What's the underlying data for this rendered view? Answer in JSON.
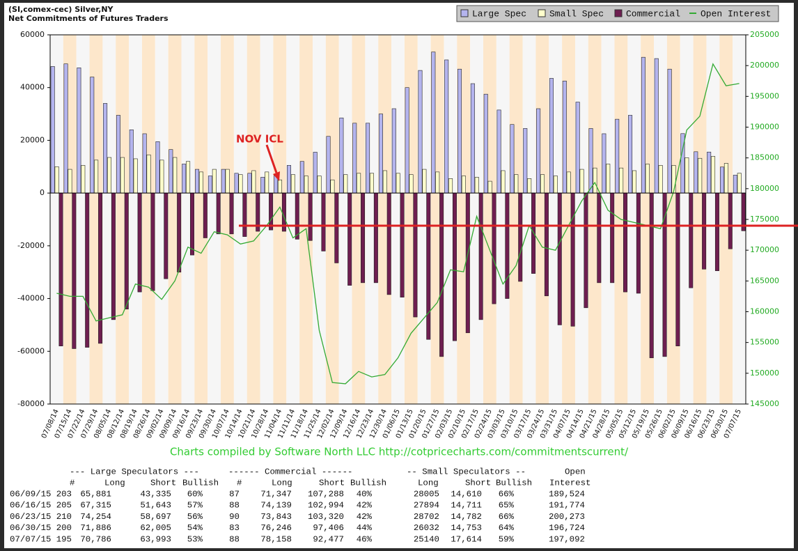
{
  "chart_data": {
    "type": "bar",
    "title": "(SI,comex-cec) Silver,NY",
    "subtitle": "Net Commitments of Futures Traders",
    "categories": [
      "07/08/14",
      "07/15/14",
      "07/22/14",
      "07/29/14",
      "08/05/14",
      "08/12/14",
      "08/19/14",
      "08/26/14",
      "09/02/14",
      "09/09/14",
      "09/16/14",
      "09/23/14",
      "09/30/14",
      "10/07/14",
      "10/14/14",
      "10/21/14",
      "10/28/14",
      "11/04/14",
      "11/11/14",
      "11/18/14",
      "11/25/14",
      "12/02/14",
      "12/09/14",
      "12/16/14",
      "12/23/14",
      "12/30/14",
      "01/06/15",
      "01/13/15",
      "01/20/15",
      "01/27/15",
      "02/03/15",
      "02/10/15",
      "02/17/15",
      "02/24/15",
      "03/03/15",
      "03/10/15",
      "03/17/15",
      "03/24/15",
      "03/31/15",
      "04/07/15",
      "04/14/15",
      "04/21/15",
      "04/28/15",
      "05/05/15",
      "05/12/15",
      "05/19/15",
      "05/26/15",
      "06/02/15",
      "06/09/15",
      "06/16/15",
      "06/23/15",
      "06/30/15",
      "07/07/15"
    ],
    "series": [
      {
        "name": "Large Spec",
        "color": "#b4b4ee",
        "values": [
          48000,
          49000,
          47500,
          44000,
          34000,
          29500,
          24000,
          22500,
          19500,
          16500,
          11000,
          9000,
          6500,
          9000,
          7500,
          7500,
          6000,
          7000,
          10500,
          12000,
          15500,
          21500,
          28500,
          26500,
          26500,
          30000,
          32000,
          40000,
          46500,
          53500,
          50500,
          47000,
          41500,
          37500,
          31500,
          26000,
          24500,
          32000,
          43500,
          42500,
          34500,
          24500,
          22500,
          28000,
          29500,
          51500,
          51000,
          47000,
          22546,
          15672,
          15557,
          9881,
          6793
        ]
      },
      {
        "name": "Small Spec",
        "color": "#ffffcc",
        "values": [
          10000,
          9000,
          10500,
          12500,
          13500,
          13500,
          13000,
          14500,
          12500,
          13500,
          12000,
          8000,
          9000,
          9000,
          7000,
          8500,
          8000,
          5000,
          7000,
          6500,
          6500,
          5000,
          7000,
          7500,
          7500,
          8500,
          7500,
          7000,
          9000,
          8000,
          5500,
          6500,
          6000,
          4500,
          8500,
          7000,
          5500,
          7000,
          6500,
          8000,
          9000,
          9500,
          11000,
          9500,
          8500,
          11000,
          10500,
          10500,
          13395,
          13183,
          13920,
          11279,
          7526
        ]
      },
      {
        "name": "Commercial",
        "color": "#6e1e50",
        "values": [
          -58000,
          -59000,
          -58500,
          -57000,
          -48000,
          -44000,
          -37500,
          -37000,
          -32500,
          -30000,
          -23500,
          -17000,
          -15500,
          -15500,
          -16500,
          -14500,
          -14000,
          -14500,
          -17500,
          -18000,
          -22000,
          -26500,
          -35000,
          -34000,
          -34000,
          -38500,
          -39500,
          -47000,
          -55500,
          -62000,
          -56000,
          -53000,
          -48000,
          -42000,
          -40000,
          -33500,
          -30500,
          -39000,
          -50000,
          -50500,
          -43500,
          -34000,
          -34000,
          -37500,
          -38000,
          -62500,
          -62000,
          -58000,
          -35941,
          -28855,
          -29477,
          -21160,
          -14319
        ]
      },
      {
        "name": "Open Interest",
        "color": "#33aa33",
        "axis": "y2",
        "values": [
          163000,
          162500,
          162500,
          158500,
          159000,
          159500,
          164500,
          164000,
          162000,
          165000,
          170500,
          169500,
          173000,
          172500,
          171000,
          171500,
          174000,
          177000,
          172000,
          173500,
          157000,
          148500,
          148300,
          150300,
          149400,
          149800,
          152500,
          156500,
          159000,
          161500,
          166800,
          166500,
          175500,
          170000,
          164500,
          167500,
          174000,
          170500,
          170000,
          174000,
          178000,
          181000,
          176500,
          175000,
          174500,
          174000,
          173500,
          179500,
          189524,
          191774,
          200273,
          196724,
          197092
        ]
      }
    ],
    "ylim": [
      -80000,
      60000
    ],
    "yticks": [
      -80000,
      -60000,
      -40000,
      -20000,
      0,
      20000,
      40000,
      60000
    ],
    "y2lim": [
      145000,
      205000
    ],
    "y2ticks": [
      145000,
      150000,
      155000,
      160000,
      165000,
      170000,
      175000,
      180000,
      185000,
      190000,
      195000,
      200000,
      205000
    ],
    "grid": false,
    "legend": "top-right",
    "annotations": [
      {
        "text": "NOV ICL",
        "color": "#dd2222"
      }
    ],
    "source": "Charts compiled by Software North LLC  http://cotpricecharts.com/commitmentscurrent/"
  },
  "table": {
    "groups": [
      "--- Large Speculators ---",
      "------ Commercial ------",
      "-- Small Speculators --",
      "Open"
    ],
    "columns": [
      "#",
      "Long",
      "Short",
      "Bullish",
      "#",
      "Long",
      "Short",
      "Bullish",
      "Long",
      "Short",
      "Bullish",
      "Interest"
    ],
    "rows": [
      [
        "06/09/15",
        "203",
        "65,881",
        "43,335",
        "60%",
        "87",
        "71,347",
        "107,288",
        "40%",
        "28005",
        "14,610",
        "66%",
        "189,524"
      ],
      [
        "06/16/15",
        "205",
        "67,315",
        "51,643",
        "57%",
        "88",
        "74,139",
        "102,994",
        "42%",
        "27894",
        "14,711",
        "65%",
        "191,774"
      ],
      [
        "06/23/15",
        "210",
        "74,254",
        "58,697",
        "56%",
        "90",
        "73,843",
        "103,320",
        "42%",
        "28702",
        "14,782",
        "66%",
        "200,273"
      ],
      [
        "06/30/15",
        "200",
        "71,886",
        "62,005",
        "54%",
        "83",
        "76,246",
        "97,406",
        "44%",
        "26032",
        "14,753",
        "64%",
        "196,724"
      ],
      [
        "07/07/15",
        "195",
        "70,786",
        "63,993",
        "53%",
        "88",
        "78,158",
        "92,477",
        "46%",
        "25140",
        "17,614",
        "59%",
        "197,092"
      ]
    ]
  }
}
